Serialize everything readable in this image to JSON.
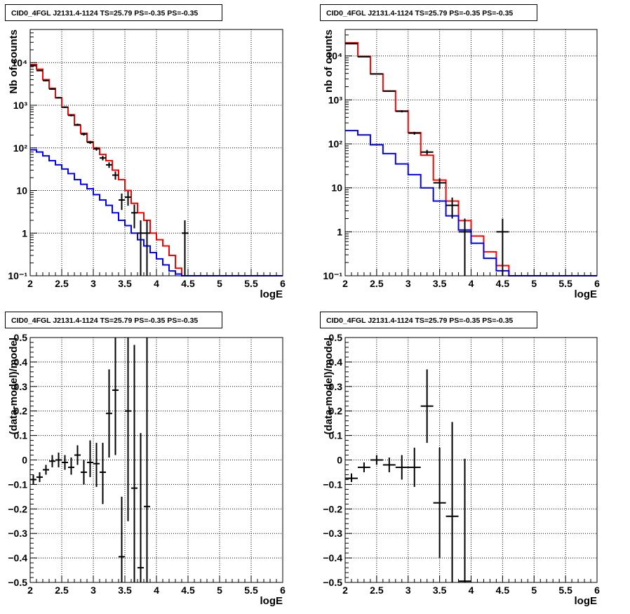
{
  "palette": {
    "red": "#ff0000",
    "blue": "#0000ff",
    "black": "#000000",
    "grid": "#000000"
  },
  "chart_data": [
    {
      "type": "line",
      "panel": "top-left",
      "title": "CID0_4FGL J2131.4-1124 TS=25.79 PS=-0.35 PS=-0.35",
      "xlabel": "logE",
      "ylabel": "Nb of counts",
      "xlim": [
        2,
        6
      ],
      "ylim": [
        0.1,
        60000
      ],
      "yscale": "log",
      "grid": true,
      "xticks": [
        "2",
        "2.5",
        "3",
        "3.5",
        "4",
        "4.5",
        "5",
        "5.5",
        "6"
      ],
      "yticks": [
        {
          "v": 0.1,
          "label": "10⁻¹"
        },
        {
          "v": 1,
          "label": "1"
        },
        {
          "v": 10,
          "label": "10"
        },
        {
          "v": 100,
          "label": "10²"
        },
        {
          "v": 1000,
          "label": "10³"
        },
        {
          "v": 10000,
          "label": "10⁴"
        }
      ],
      "bin_edges": [
        2.0,
        2.1,
        2.2,
        2.3,
        2.4,
        2.5,
        2.6,
        2.7,
        2.8,
        2.9,
        3.0,
        3.1,
        3.2,
        3.3,
        3.4,
        3.5,
        3.6,
        3.7,
        3.8,
        3.9,
        4.0,
        4.1,
        4.2,
        4.3,
        4.4,
        4.5,
        4.6,
        4.7,
        4.8,
        4.9,
        5.0,
        5.1,
        5.2,
        5.3,
        5.4,
        5.5,
        5.6,
        5.7,
        5.8,
        5.9,
        6.0
      ],
      "series": [
        {
          "color": "#ff0000",
          "style": "hist",
          "values": [
            9000,
            7000,
            4000,
            2500,
            1500,
            900,
            600,
            340,
            220,
            140,
            100,
            70,
            50,
            30,
            18,
            10,
            5,
            3,
            2,
            1,
            0.7,
            0.5,
            0.3,
            0.15,
            0.1,
            0.1,
            0.1,
            0.1,
            0.1,
            0.1,
            0.1,
            0.1,
            0.1,
            0.1,
            0.1,
            0.1,
            0.1,
            0.1,
            0.1,
            0.1
          ]
        },
        {
          "color": "#0000ff",
          "style": "hist",
          "values": [
            90,
            80,
            65,
            50,
            40,
            32,
            25,
            18,
            14,
            11,
            8,
            6,
            4.5,
            3,
            2,
            1.5,
            1,
            0.7,
            0.5,
            0.35,
            0.25,
            0.18,
            0.13,
            0.11,
            0.1,
            0.1,
            0.1,
            0.1,
            0.1,
            0.1,
            0.1,
            0.1,
            0.1,
            0.1,
            0.1,
            0.1,
            0.1,
            0.1,
            0.1,
            0.1
          ]
        },
        {
          "color": "#000000",
          "style": "points",
          "points": [
            {
              "x": 2.05,
              "y": 8500,
              "lo": 8300,
              "hi": 8700
            },
            {
              "x": 2.15,
              "y": 6500,
              "lo": 6300,
              "hi": 6700
            },
            {
              "x": 2.25,
              "y": 3800,
              "lo": 3650,
              "hi": 3950
            },
            {
              "x": 2.35,
              "y": 2400,
              "lo": 2300,
              "hi": 2500
            },
            {
              "x": 2.45,
              "y": 1500,
              "lo": 1440,
              "hi": 1560
            },
            {
              "x": 2.55,
              "y": 900,
              "lo": 860,
              "hi": 940
            },
            {
              "x": 2.65,
              "y": 580,
              "lo": 550,
              "hi": 610
            },
            {
              "x": 2.75,
              "y": 350,
              "lo": 330,
              "hi": 370
            },
            {
              "x": 2.85,
              "y": 210,
              "lo": 195,
              "hi": 225
            },
            {
              "x": 2.95,
              "y": 135,
              "lo": 124,
              "hi": 146
            },
            {
              "x": 3.05,
              "y": 95,
              "lo": 86,
              "hi": 104
            },
            {
              "x": 3.15,
              "y": 58,
              "lo": 51,
              "hi": 65
            },
            {
              "x": 3.25,
              "y": 40,
              "lo": 34,
              "hi": 46
            },
            {
              "x": 3.35,
              "y": 23,
              "lo": 18,
              "hi": 28
            },
            {
              "x": 3.45,
              "y": 6,
              "lo": 3.5,
              "hi": 8.5
            },
            {
              "x": 3.55,
              "y": 7,
              "lo": 4.4,
              "hi": 9.6
            },
            {
              "x": 3.65,
              "y": 3,
              "lo": 1.3,
              "hi": 4.7
            },
            {
              "x": 3.75,
              "y": 1,
              "lo": 0.1,
              "hi": 2
            },
            {
              "x": 3.85,
              "y": 1,
              "lo": 0.1,
              "hi": 2
            },
            {
              "x": 4.45,
              "y": 1,
              "lo": 0.1,
              "hi": 2
            }
          ]
        }
      ]
    },
    {
      "type": "line",
      "panel": "top-right",
      "title": "CID0_4FGL J2131.4-1124 TS=25.79 PS=-0.35 PS=-0.35",
      "xlabel": "logE",
      "ylabel": "nb of counts",
      "xlim": [
        2,
        6
      ],
      "ylim": [
        0.1,
        40000
      ],
      "yscale": "log",
      "grid": true,
      "xticks": [
        "2",
        "2.5",
        "3",
        "3.5",
        "4",
        "4.5",
        "5",
        "5.5",
        "6"
      ],
      "yticks": [
        {
          "v": 0.1,
          "label": "10⁻¹"
        },
        {
          "v": 1,
          "label": "1"
        },
        {
          "v": 10,
          "label": "10"
        },
        {
          "v": 100,
          "label": "10²"
        },
        {
          "v": 1000,
          "label": "10³"
        },
        {
          "v": 10000,
          "label": "10⁴"
        }
      ],
      "bin_edges": [
        2.0,
        2.2,
        2.4,
        2.6,
        2.8,
        3.0,
        3.2,
        3.4,
        3.6,
        3.8,
        4.0,
        4.2,
        4.4,
        4.6,
        4.8,
        5.0,
        5.2,
        5.4,
        5.6,
        5.8,
        6.0
      ],
      "series": [
        {
          "color": "#ff0000",
          "style": "hist",
          "values": [
            20000,
            9800,
            3900,
            1600,
            560,
            180,
            55,
            15,
            5,
            1.8,
            0.8,
            0.35,
            0.17,
            0.1,
            0.1,
            0.1,
            0.1,
            0.1,
            0.1,
            0.1
          ]
        },
        {
          "color": "#0000ff",
          "style": "hist",
          "values": [
            200,
            160,
            95,
            60,
            35,
            20,
            10,
            5,
            2.3,
            1.1,
            0.55,
            0.25,
            0.13,
            0.1,
            0.1,
            0.1,
            0.1,
            0.1,
            0.1,
            0.1
          ]
        },
        {
          "color": "#000000",
          "style": "points",
          "points": [
            {
              "x": 2.1,
              "y": 19000,
              "lo": 18700,
              "hi": 19300
            },
            {
              "x": 2.3,
              "y": 9600,
              "lo": 9400,
              "hi": 9800
            },
            {
              "x": 2.5,
              "y": 3900,
              "lo": 3800,
              "hi": 4000
            },
            {
              "x": 2.7,
              "y": 1580,
              "lo": 1520,
              "hi": 1640
            },
            {
              "x": 2.9,
              "y": 550,
              "lo": 520,
              "hi": 580
            },
            {
              "x": 3.1,
              "y": 175,
              "lo": 162,
              "hi": 188
            },
            {
              "x": 3.3,
              "y": 65,
              "lo": 57,
              "hi": 73
            },
            {
              "x": 3.5,
              "y": 13,
              "lo": 9.5,
              "hi": 16.5
            },
            {
              "x": 3.7,
              "y": 4,
              "lo": 2,
              "hi": 6
            },
            {
              "x": 3.9,
              "y": 1,
              "lo": 0.1,
              "hi": 2
            },
            {
              "x": 4.5,
              "y": 1,
              "lo": 0.1,
              "hi": 2
            }
          ]
        }
      ]
    },
    {
      "type": "scatter",
      "panel": "bottom-left",
      "title": "CID0_4FGL J2131.4-1124 TS=25.79 PS=-0.35 PS=-0.35",
      "xlabel": "logE",
      "ylabel": "(data-model)/model",
      "xlim": [
        2,
        6
      ],
      "ylim": [
        -0.5,
        0.5
      ],
      "yscale": "linear",
      "grid": true,
      "xticks": [
        "2",
        "2.5",
        "3",
        "3.5",
        "4",
        "4.5",
        "5",
        "5.5",
        "6"
      ],
      "yticks": [
        {
          "v": -0.5,
          "label": "−0.5"
        },
        {
          "v": -0.4,
          "label": "−0.4"
        },
        {
          "v": -0.3,
          "label": "−0.3"
        },
        {
          "v": -0.2,
          "label": "−0.2"
        },
        {
          "v": -0.1,
          "label": "−0.1"
        },
        {
          "v": 0,
          "label": "0"
        },
        {
          "v": 0.1,
          "label": "0.1"
        },
        {
          "v": 0.2,
          "label": "0.2"
        },
        {
          "v": 0.3,
          "label": "0.3"
        },
        {
          "v": 0.4,
          "label": "0.4"
        },
        {
          "v": 0.5,
          "label": "0.5"
        }
      ],
      "series": [
        {
          "color": "#000000",
          "style": "points",
          "halfwidth": 0.05,
          "points": [
            {
              "x": 2.05,
              "y": -0.08,
              "lo": -0.1,
              "hi": -0.06
            },
            {
              "x": 2.15,
              "y": -0.07,
              "lo": -0.09,
              "hi": -0.05
            },
            {
              "x": 2.25,
              "y": -0.04,
              "lo": -0.06,
              "hi": -0.02
            },
            {
              "x": 2.35,
              "y": -0.005,
              "lo": -0.03,
              "hi": 0.02
            },
            {
              "x": 2.45,
              "y": 0.0,
              "lo": -0.03,
              "hi": 0.03
            },
            {
              "x": 2.55,
              "y": -0.01,
              "lo": -0.04,
              "hi": 0.02
            },
            {
              "x": 2.65,
              "y": -0.03,
              "lo": -0.06,
              "hi": 0.01
            },
            {
              "x": 2.75,
              "y": 0.02,
              "lo": -0.02,
              "hi": 0.06
            },
            {
              "x": 2.85,
              "y": -0.05,
              "lo": -0.1,
              "hi": 0.0
            },
            {
              "x": 2.95,
              "y": -0.01,
              "lo": -0.07,
              "hi": 0.08
            },
            {
              "x": 3.05,
              "y": -0.015,
              "lo": -0.11,
              "hi": 0.07
            },
            {
              "x": 3.15,
              "y": -0.05,
              "lo": -0.18,
              "hi": 0.07
            },
            {
              "x": 3.25,
              "y": 0.19,
              "lo": 0.01,
              "hi": 0.37
            },
            {
              "x": 3.35,
              "y": 0.285,
              "lo": 0.02,
              "hi": 0.5
            },
            {
              "x": 3.45,
              "y": -0.395,
              "lo": -0.5,
              "hi": -0.15
            },
            {
              "x": 3.55,
              "y": 0.2,
              "lo": -0.25,
              "hi": 0.5
            },
            {
              "x": 3.65,
              "y": -0.115,
              "lo": -0.5,
              "hi": 0.47
            },
            {
              "x": 3.75,
              "y": -0.44,
              "lo": -0.5,
              "hi": 0.11
            },
            {
              "x": 3.85,
              "y": -0.19,
              "lo": -0.5,
              "hi": 0.5
            }
          ]
        }
      ]
    },
    {
      "type": "scatter",
      "panel": "bottom-right",
      "title": "CID0_4FGL J2131.4-1124 TS=25.79 PS=-0.35 PS=-0.35",
      "xlabel": "logE",
      "ylabel": "(data-model)/model",
      "xlim": [
        2,
        6
      ],
      "ylim": [
        -0.5,
        0.5
      ],
      "yscale": "linear",
      "grid": true,
      "xticks": [
        "2",
        "2.5",
        "3",
        "3.5",
        "4",
        "4.5",
        "5",
        "5.5",
        "6"
      ],
      "yticks": [
        {
          "v": -0.5,
          "label": "−0.5"
        },
        {
          "v": -0.4,
          "label": "−0.4"
        },
        {
          "v": -0.3,
          "label": "−0.3"
        },
        {
          "v": -0.2,
          "label": "−0.2"
        },
        {
          "v": -0.1,
          "label": "−0.1"
        },
        {
          "v": 0,
          "label": "0"
        },
        {
          "v": 0.1,
          "label": "0.1"
        },
        {
          "v": 0.2,
          "label": "0.2"
        },
        {
          "v": 0.3,
          "label": "0.3"
        },
        {
          "v": 0.4,
          "label": "0.4"
        },
        {
          "v": 0.5,
          "label": "0.5"
        }
      ],
      "series": [
        {
          "color": "#000000",
          "style": "points",
          "halfwidth": 0.1,
          "points": [
            {
              "x": 2.1,
              "y": -0.075,
              "lo": -0.09,
              "hi": -0.055
            },
            {
              "x": 2.3,
              "y": -0.03,
              "lo": -0.05,
              "hi": -0.01
            },
            {
              "x": 2.5,
              "y": 0.0,
              "lo": -0.02,
              "hi": 0.02
            },
            {
              "x": 2.7,
              "y": -0.02,
              "lo": -0.05,
              "hi": 0.01
            },
            {
              "x": 2.9,
              "y": -0.03,
              "lo": -0.08,
              "hi": 0.02
            },
            {
              "x": 3.1,
              "y": -0.03,
              "lo": -0.11,
              "hi": 0.05
            },
            {
              "x": 3.3,
              "y": 0.22,
              "lo": 0.07,
              "hi": 0.37
            },
            {
              "x": 3.5,
              "y": -0.175,
              "lo": -0.4,
              "hi": 0.05
            },
            {
              "x": 3.7,
              "y": -0.23,
              "lo": -0.5,
              "hi": 0.155
            },
            {
              "x": 3.9,
              "y": -0.495,
              "lo": -0.5,
              "hi": 0.005
            }
          ]
        }
      ]
    }
  ]
}
